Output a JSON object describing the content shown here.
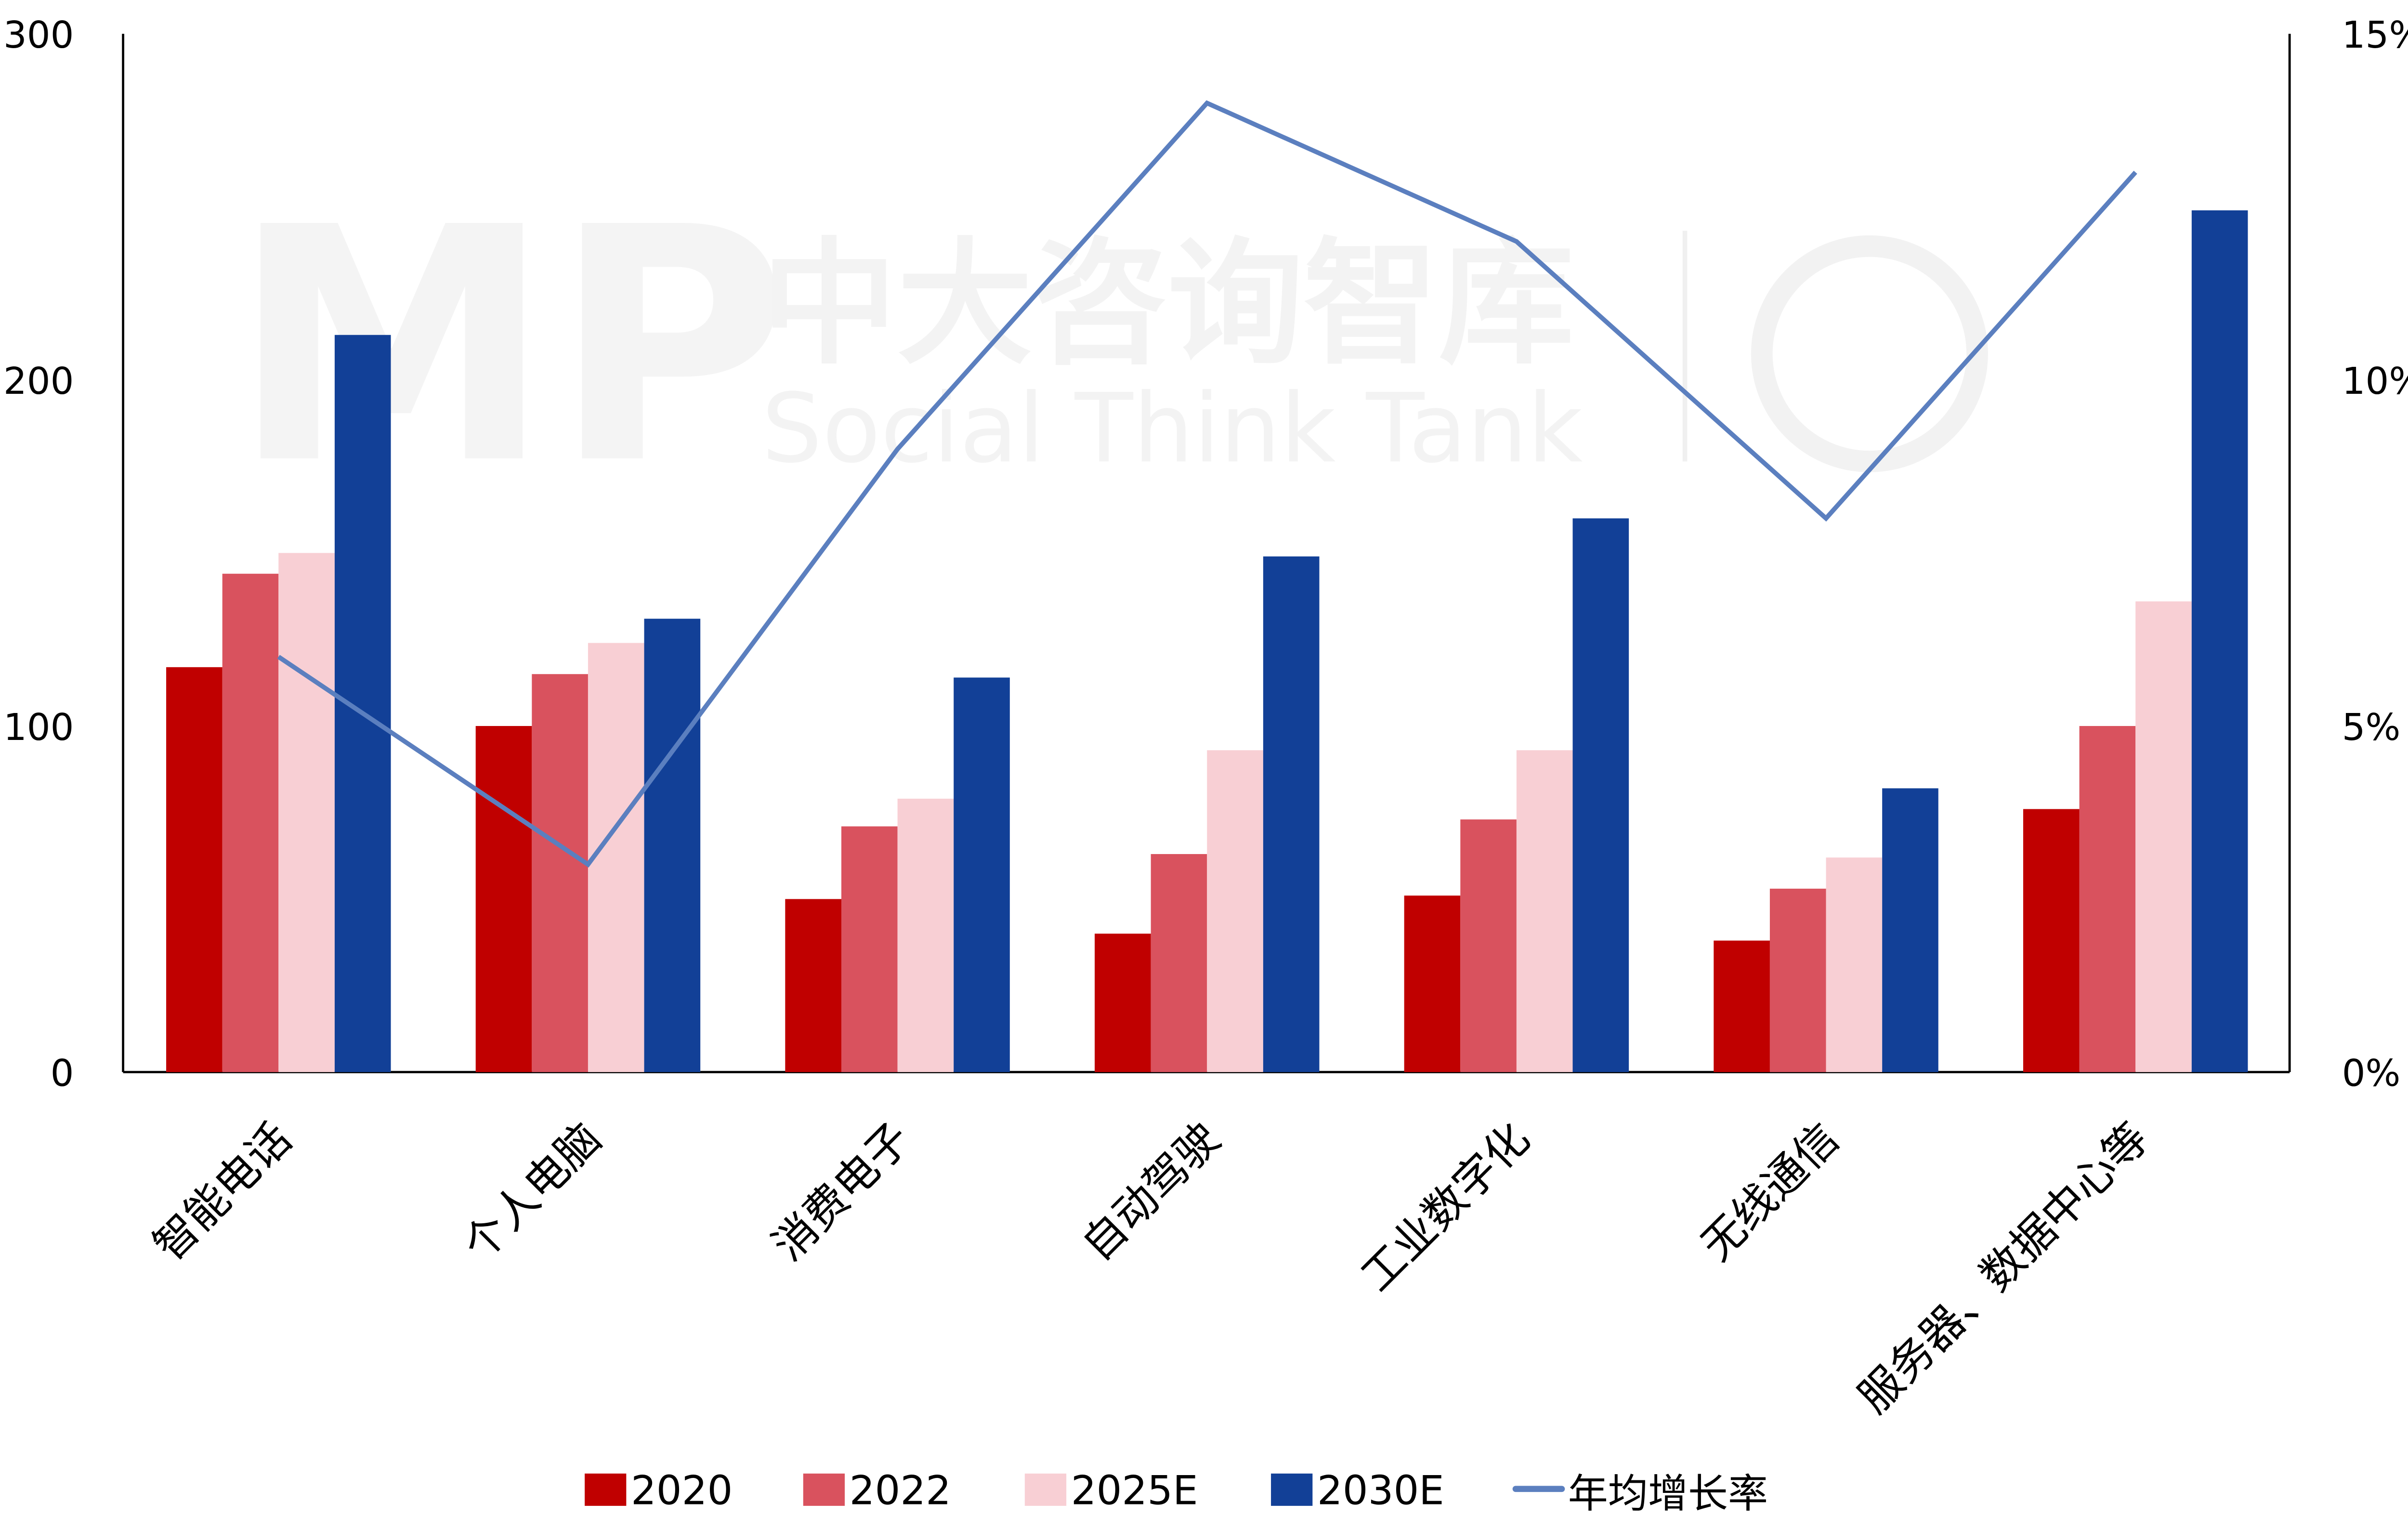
{
  "chart_data": {
    "type": "bar",
    "title": "",
    "categories": [
      "智能电话",
      "个人电脑",
      "消费电子",
      "自动驾驶",
      "工业数字化",
      "无线通信",
      "服务器、数据中心等"
    ],
    "series": [
      {
        "name": "2020",
        "type": "bar",
        "axis": "left",
        "color": "#c00000",
        "values": [
          117,
          100,
          50,
          40,
          51,
          38,
          76
        ]
      },
      {
        "name": "2022",
        "type": "bar",
        "axis": "left",
        "color": "#d9525e",
        "values": [
          144,
          115,
          71,
          63,
          73,
          53,
          100
        ]
      },
      {
        "name": "2025E",
        "type": "bar",
        "axis": "left",
        "color": "#f8cfd4",
        "values": [
          150,
          124,
          79,
          93,
          93,
          62,
          136
        ]
      },
      {
        "name": "2030E",
        "type": "bar",
        "axis": "left",
        "color": "#124097",
        "values": [
          213,
          131,
          114,
          149,
          160,
          82,
          249
        ]
      },
      {
        "name": "年均增长率",
        "type": "line",
        "axis": "right",
        "color": "#5b7fbf",
        "values": [
          6.0,
          3.0,
          9.0,
          14.0,
          12.0,
          8.0,
          13.0
        ],
        "unit": "%"
      }
    ],
    "xlabel": "",
    "ylabel": "",
    "ylim": [
      0,
      300
    ],
    "y_ticks": [
      "0",
      "100",
      "200",
      "300"
    ],
    "y2lim": [
      0,
      15
    ],
    "y2_ticks": [
      "0%",
      "5%",
      "10%",
      "15%"
    ],
    "grid": false,
    "legend_position": "bottom"
  },
  "legend": {
    "items": [
      {
        "label": "2020",
        "color": "#c00000",
        "kind": "box"
      },
      {
        "label": "2022",
        "color": "#d9525e",
        "kind": "box"
      },
      {
        "label": "2025E",
        "color": "#f8cfd4",
        "kind": "box"
      },
      {
        "label": "2030E",
        "color": "#124097",
        "kind": "box"
      },
      {
        "label": "年均增长率",
        "color": "#5b7fbf",
        "kind": "line"
      }
    ]
  },
  "watermark": {
    "logo": "MP",
    "cn": "中大咨询智库",
    "en": "Social Think Tank"
  }
}
